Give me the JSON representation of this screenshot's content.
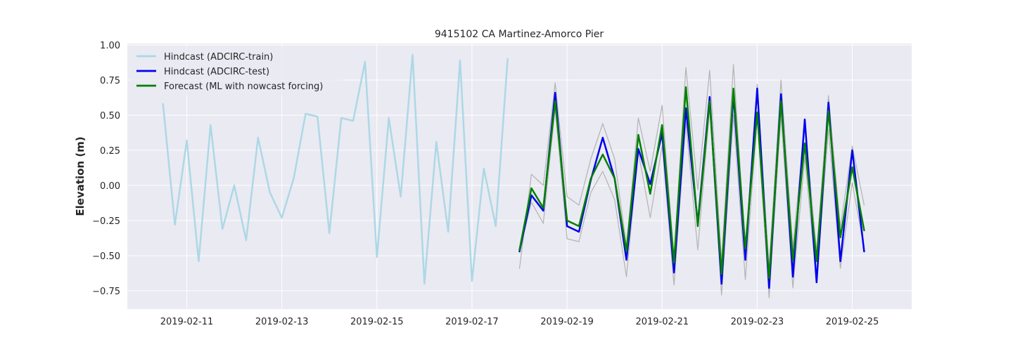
{
  "chart_data": {
    "type": "line",
    "title": "9415102 CA Martinez-Amorco Pier",
    "xlabel": "",
    "ylabel": "Elevation (m)",
    "x_tick_labels": [
      "2019-02-11",
      "2019-02-13",
      "2019-02-15",
      "2019-02-17",
      "2019-02-19",
      "2019-02-21",
      "2019-02-23",
      "2019-02-25"
    ],
    "y_tick_labels": [
      "1.00",
      "0.75",
      "0.50",
      "0.25",
      "0.00",
      "−0.25",
      "−0.50",
      "−0.75"
    ],
    "y_ticks": [
      1.0,
      0.75,
      0.5,
      0.25,
      0.0,
      -0.25,
      -0.5,
      -0.75
    ],
    "x_ticks": [
      "2019-02-11",
      "2019-02-13",
      "2019-02-15",
      "2019-02-17",
      "2019-02-19",
      "2019-02-21",
      "2019-02-23",
      "2019-02-25"
    ],
    "xlim": [
      "2019-02-09 18:00",
      "2019-02-26 06:00"
    ],
    "ylim": [
      -0.88,
      1.01
    ],
    "grid": true,
    "legend_position": "top-left",
    "background": "#eaeaf2",
    "series": [
      {
        "name": "Hindcast (ADCIRC-train)",
        "color": "#add8e6",
        "width": 2.5,
        "points": [
          [
            "2019-02-10 12:00",
            0.58
          ],
          [
            "2019-02-10 18:00",
            -0.28
          ],
          [
            "2019-02-11 00:00",
            0.32
          ],
          [
            "2019-02-11 06:00",
            -0.54
          ],
          [
            "2019-02-11 12:00",
            0.43
          ],
          [
            "2019-02-11 18:00",
            -0.31
          ],
          [
            "2019-02-12 00:00",
            0.0
          ],
          [
            "2019-02-12 06:00",
            -0.39
          ],
          [
            "2019-02-12 12:00",
            0.34
          ],
          [
            "2019-02-12 18:00",
            -0.05
          ],
          [
            "2019-02-13 00:00",
            -0.23
          ],
          [
            "2019-02-13 06:00",
            0.05
          ],
          [
            "2019-02-13 12:00",
            0.51
          ],
          [
            "2019-02-13 18:00",
            0.49
          ],
          [
            "2019-02-14 00:00",
            -0.34
          ],
          [
            "2019-02-14 06:00",
            0.48
          ],
          [
            "2019-02-14 12:00",
            0.46
          ],
          [
            "2019-02-14 18:00",
            0.88
          ],
          [
            "2019-02-15 00:00",
            -0.51
          ],
          [
            "2019-02-15 06:00",
            0.48
          ],
          [
            "2019-02-15 12:00",
            -0.08
          ],
          [
            "2019-02-15 18:00",
            0.93
          ],
          [
            "2019-02-16 00:00",
            -0.7
          ],
          [
            "2019-02-16 06:00",
            0.31
          ],
          [
            "2019-02-16 12:00",
            -0.33
          ],
          [
            "2019-02-16 18:00",
            0.89
          ],
          [
            "2019-02-17 00:00",
            -0.68
          ],
          [
            "2019-02-17 06:00",
            0.12
          ],
          [
            "2019-02-17 12:00",
            -0.29
          ],
          [
            "2019-02-17 18:00",
            0.9
          ]
        ]
      },
      {
        "name": "",
        "color": "#b3b3b3",
        "width": 1.2,
        "points": [
          [
            "2019-02-18 00:00",
            -0.59
          ],
          [
            "2019-02-18 06:00",
            0.08
          ],
          [
            "2019-02-18 12:00",
            0.0
          ],
          [
            "2019-02-18 18:00",
            0.73
          ],
          [
            "2019-02-19 00:00",
            -0.08
          ],
          [
            "2019-02-19 06:00",
            -0.14
          ],
          [
            "2019-02-19 12:00",
            0.19
          ],
          [
            "2019-02-19 18:00",
            0.44
          ],
          [
            "2019-02-20 00:00",
            0.19
          ],
          [
            "2019-02-20 06:00",
            -0.43
          ],
          [
            "2019-02-20 12:00",
            0.48
          ],
          [
            "2019-02-20 18:00",
            0.1
          ],
          [
            "2019-02-21 00:00",
            0.57
          ],
          [
            "2019-02-21 06:00",
            -0.51
          ],
          [
            "2019-02-21 12:00",
            0.84
          ],
          [
            "2019-02-21 18:00",
            -0.03
          ],
          [
            "2019-02-22 00:00",
            0.82
          ],
          [
            "2019-02-22 06:00",
            -0.54
          ],
          [
            "2019-02-22 12:00",
            0.86
          ],
          [
            "2019-02-22 18:00",
            -0.44
          ],
          [
            "2019-02-23 00:00",
            0.72
          ],
          [
            "2019-02-23 06:00",
            -0.58
          ],
          [
            "2019-02-23 12:00",
            0.75
          ],
          [
            "2019-02-23 18:00",
            -0.44
          ],
          [
            "2019-02-24 00:00",
            0.44
          ],
          [
            "2019-02-24 06:00",
            -0.47
          ],
          [
            "2019-02-24 12:00",
            0.64
          ],
          [
            "2019-02-24 18:00",
            -0.3
          ],
          [
            "2019-02-25 00:00",
            0.28
          ],
          [
            "2019-02-25 06:00",
            -0.14
          ]
        ]
      },
      {
        "name": "",
        "color": "#b3b3b3",
        "width": 1.2,
        "points": [
          [
            "2019-02-18 00:00",
            -0.47
          ],
          [
            "2019-02-18 06:00",
            -0.12
          ],
          [
            "2019-02-18 12:00",
            -0.27
          ],
          [
            "2019-02-18 18:00",
            0.55
          ],
          [
            "2019-02-19 00:00",
            -0.38
          ],
          [
            "2019-02-19 06:00",
            -0.4
          ],
          [
            "2019-02-19 12:00",
            -0.05
          ],
          [
            "2019-02-19 18:00",
            0.1
          ],
          [
            "2019-02-20 00:00",
            -0.1
          ],
          [
            "2019-02-20 06:00",
            -0.65
          ],
          [
            "2019-02-20 12:00",
            0.24
          ],
          [
            "2019-02-20 18:00",
            -0.23
          ],
          [
            "2019-02-21 00:00",
            0.28
          ],
          [
            "2019-02-21 06:00",
            -0.71
          ],
          [
            "2019-02-21 12:00",
            0.45
          ],
          [
            "2019-02-21 18:00",
            -0.46
          ],
          [
            "2019-02-22 00:00",
            0.55
          ],
          [
            "2019-02-22 06:00",
            -0.78
          ],
          [
            "2019-02-22 12:00",
            0.5
          ],
          [
            "2019-02-22 18:00",
            -0.67
          ],
          [
            "2019-02-23 00:00",
            0.48
          ],
          [
            "2019-02-23 06:00",
            -0.8
          ],
          [
            "2019-02-23 12:00",
            0.5
          ],
          [
            "2019-02-23 18:00",
            -0.73
          ],
          [
            "2019-02-24 00:00",
            0.2
          ],
          [
            "2019-02-24 06:00",
            -0.68
          ],
          [
            "2019-02-24 12:00",
            0.4
          ],
          [
            "2019-02-24 18:00",
            -0.59
          ],
          [
            "2019-02-25 00:00",
            0.02
          ],
          [
            "2019-02-25 06:00",
            -0.45
          ]
        ]
      },
      {
        "name": "Hindcast (ADCIRC-test)",
        "color": "#0000ee",
        "width": 2.5,
        "points": [
          [
            "2019-02-18 00:00",
            -0.47
          ],
          [
            "2019-02-18 06:00",
            -0.07
          ],
          [
            "2019-02-18 12:00",
            -0.18
          ],
          [
            "2019-02-18 18:00",
            0.66
          ],
          [
            "2019-02-19 00:00",
            -0.29
          ],
          [
            "2019-02-19 06:00",
            -0.33
          ],
          [
            "2019-02-19 12:00",
            0.04
          ],
          [
            "2019-02-19 18:00",
            0.34
          ],
          [
            "2019-02-20 00:00",
            0.05
          ],
          [
            "2019-02-20 06:00",
            -0.53
          ],
          [
            "2019-02-20 12:00",
            0.26
          ],
          [
            "2019-02-20 18:00",
            0.01
          ],
          [
            "2019-02-21 00:00",
            0.37
          ],
          [
            "2019-02-21 06:00",
            -0.62
          ],
          [
            "2019-02-21 12:00",
            0.55
          ],
          [
            "2019-02-21 18:00",
            -0.27
          ],
          [
            "2019-02-22 00:00",
            0.63
          ],
          [
            "2019-02-22 06:00",
            -0.7
          ],
          [
            "2019-02-22 12:00",
            0.65
          ],
          [
            "2019-02-22 18:00",
            -0.53
          ],
          [
            "2019-02-23 00:00",
            0.69
          ],
          [
            "2019-02-23 06:00",
            -0.73
          ],
          [
            "2019-02-23 12:00",
            0.65
          ],
          [
            "2019-02-23 18:00",
            -0.65
          ],
          [
            "2019-02-24 00:00",
            0.47
          ],
          [
            "2019-02-24 06:00",
            -0.69
          ],
          [
            "2019-02-24 12:00",
            0.59
          ],
          [
            "2019-02-24 18:00",
            -0.54
          ],
          [
            "2019-02-25 00:00",
            0.25
          ],
          [
            "2019-02-25 06:00",
            -0.47
          ]
        ]
      },
      {
        "name": "Forecast (ML with nowcast forcing)",
        "color": "#008000",
        "width": 2.5,
        "points": [
          [
            "2019-02-18 00:00",
            -0.46
          ],
          [
            "2019-02-18 06:00",
            -0.02
          ],
          [
            "2019-02-18 12:00",
            -0.16
          ],
          [
            "2019-02-18 18:00",
            0.6
          ],
          [
            "2019-02-19 00:00",
            -0.25
          ],
          [
            "2019-02-19 06:00",
            -0.29
          ],
          [
            "2019-02-19 12:00",
            0.05
          ],
          [
            "2019-02-19 18:00",
            0.22
          ],
          [
            "2019-02-20 00:00",
            0.05
          ],
          [
            "2019-02-20 06:00",
            -0.47
          ],
          [
            "2019-02-20 12:00",
            0.36
          ],
          [
            "2019-02-20 18:00",
            -0.06
          ],
          [
            "2019-02-21 00:00",
            0.43
          ],
          [
            "2019-02-21 06:00",
            -0.55
          ],
          [
            "2019-02-21 12:00",
            0.7
          ],
          [
            "2019-02-21 18:00",
            -0.29
          ],
          [
            "2019-02-22 00:00",
            0.6
          ],
          [
            "2019-02-22 06:00",
            -0.63
          ],
          [
            "2019-02-22 12:00",
            0.69
          ],
          [
            "2019-02-22 18:00",
            -0.45
          ],
          [
            "2019-02-23 00:00",
            0.52
          ],
          [
            "2019-02-23 06:00",
            -0.66
          ],
          [
            "2019-02-23 12:00",
            0.6
          ],
          [
            "2019-02-23 18:00",
            -0.53
          ],
          [
            "2019-02-24 00:00",
            0.3
          ],
          [
            "2019-02-24 06:00",
            -0.54
          ],
          [
            "2019-02-24 12:00",
            0.53
          ],
          [
            "2019-02-24 18:00",
            -0.37
          ],
          [
            "2019-02-25 00:00",
            0.13
          ],
          [
            "2019-02-25 06:00",
            -0.32
          ]
        ]
      }
    ]
  }
}
